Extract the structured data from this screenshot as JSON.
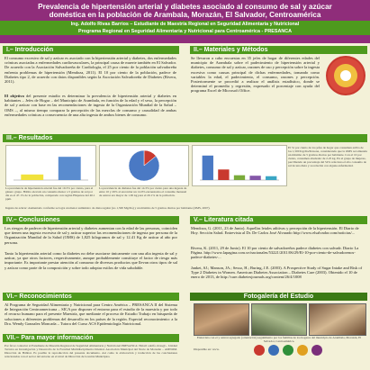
{
  "header": {
    "title_line1": "Prevalencia de hipertensión arterial y diabetes asociado al consumo de sal y azúcar",
    "title_line2": "doméstica en la población de Arambala, Morazán,  El Salvador, Centroamérica",
    "author_line": "Ing. Adolfo Rivas Barrios – Estudiante de Maestría Regional en Seguridad Alimentaria y Nutricional",
    "program_line": "Programa Regional en Seguridad Alimentaria y Nutricional para Centroamérica - PRESANCA"
  },
  "sections": {
    "intro": "I.– Introducción",
    "methods": "II.– Materiales y Métodos",
    "results": "III.– Resultados",
    "conclusions": "IV.– Conclusiones",
    "literature": "V.– Literatura citada",
    "acknowledgements": "VI.– Reconocimientos",
    "gallery": "Fotogalería del Estudio",
    "more_info": "VII.– Para mayor información"
  },
  "intro": {
    "p1": "El consumo excesivo de sal y azúcar es asociado con la hipertensión arterial y diabetes, dos enfermedades crónicas asociadas a enfermedades cardiovasculares, la principal causa de muerte también en El Salvador. De acuerdo con la Asociación Salvadoreña de Cardiología, el 25 por ciento de la población salvadoreña enfrenta problemas de hipertensión (Mendoza, 2011). El 10 por ciento de la población, padece de Diabetes tipo 2, de acuerdo con datos disponibles según la Asociación Salvadoreña de Diabetes (Rivera, 2011).",
    "p2_strong": "El objetivo",
    "p2": " del presente estudio es determinar la prevalencia de hipertensión arterial y diabetes en habitantes – Jefes de Hogar – del Municipio de Arambala, en función de la edad y el sexo, la percepción de sal y azúcar con base en las recomendaciones de ingesta de la Organización Mundial de la Salud – OMS –, al mismo tiempo comparar la percepción de las mezclas de consumo y causalidad de ambas enfermedades crónicas a consecuencia de una alta ingesta de ambos bienes de consumo."
  },
  "methods": {
    "p1": "Se llevaron a cabo encuestas en 35 jefes de hogar de diferentes edades del municipio de Arambala sobre el padecimiento de hipertensión arterial y diabetes, consumo de sal y azúcar, razones de uso y percepción sobre la ingesta excesiva como causas principal de dichas enfermedades, tomando como variables la edad, el padecimiento, el consumo, razones y percepción. Posteriormente se procedió a realizar el análisis estadístico, donde se determinó el promedio y regresión, expresado el porcentaje con ayuda del programa Excel de Microsoft Office."
  },
  "results": {
    "cap1": "La prevalencia de hipertensión arterial fue del 19.3% por ciento, para el género grupo. Hábito elevado un consumo menor a 5 gramos de sal por día es el 47.1% de la población, comparado con región Hispanos del 40.1 ppm.",
    "cap2": "La prevalencia de diabetes fue del 14.3% por ciento para una ingesta de entre 10 y 26% al encontrar un 14.9% encuestados el consumo mensual de azúcar era mayor de 1.65 kg para el 20.1% de la población.",
    "cap3": "El 51 por ciento de los jefes de hogar que consumen arriba de los 1,500 Kg/día/Persona, considerando que la OMS recomienda un máximo de 5 gramos diarios por habitante. Con el 10 por ciento, consumen alrededor de 2.25 kg. En el grupo de mujeres, percibiendo un porcentaje del 54% relaciona el alto consumo de sal de una dieta y su relación con alguna enfermedad.",
    "footnote": "Ingesta de azúcar: Aumentado conforme se logra un menor suministro de dieta regular (no 1,500 Mg/día) y un máximo de 5 gramos diarios por habitante (OMS, 2007)."
  },
  "conclusions": {
    "p1": "Los riesgos de padecer de hipertensión arterial y diabetes aumentan con la edad de las personas, coinciden que tienen una ingesta excesiva de sal y azúcar superior las recomendaciones de ingesta por persona de la Organización Mundial de la Salud (OMS) de 1,825 kilogramos de sal y 12.41 Kg de azúcar al año por persona.",
    "p2": "Tanto la hipertensión arterial como la diabetes no debe asociarse únicamente con una alta ingesta de sal y azúcar, ya que otros factores, respectivamente, aunque probablemente constituye el factor de riesgo más importante. Es importante prestar atención al consumo de diversos productos que llevan otros tipos de sal y azúcar como parte de la composición y sobre todo adoptar estilos de vida saludable."
  },
  "literature": {
    "r1": "Mendoza, G. (2011, 23 de Junio). Aquellas letales aditivas y percepción de la hipertensión. El Diario de Hoy. Sección Salud. Entrevista al Dr. De Carlos José Alvarado http://www.elsalvador.com/noticias/...",
    "r2": "Rivera, K. (2011, 29 de Junio). El 10 por ciento de salvadoreños padece diabetes con salvadr. Diario La Página. http://www.lapagina.com.sv/nacionales/53221/2011/06/29/El-10-por-ciento-de-salvadorenos-padece-diabetes-...",
    "r3": "Janket, SJ.; Manson, JA.; Sesso, H.; Buring, J.E. (2003). A Prospective Study of Sugar Intake and Risk of Type 2 Diabetes in Women. American Diabetes Association – Diabetes Care (2003). Obtenido el 10 de enero de 2013, de http://care.diabetesjournals.org/content/26/4/1008"
  },
  "acknowledgements": {
    "p1": "Al Programa de Seguridad Alimentaria y Nutricional para Centro América – PRESANCA II del Sistema de Integración Centroamericana – SICA por disponer el entorno para el estudio de la maestría y por todo el recurso humano para el presente Maestría, que mediante el proceso de Estudio Trabajo en búsqueda de soluciones a diferentes problemas del desarrollo en los países de la región. Especial reconocimiento: a la Dra. Wendy Gonzalez Moncada – Tutora del Curso ACS Epidemiología Nutricional."
  },
  "gallery": {
    "caption": "Entrevista con el y azúcar agregado (orientación) seguimiento por los familias de los hogares del municipio de Arambala, Morazán, El Salvador, Centroamérica.",
    "sponsor_label": "Disponible en: www."
  },
  "more_info": {
    "text": "Por favor contactar al Estudiante de Maestría Regional de Seguridad Alimentaria y Nutricional PRESANCA: Email: adolfo.rivas@... Unidad Técnica en Investigación y Desarrollo de la Facultad Multidisciplinaria Oriental. Asociación Municipal del Norte de Morazán – AMNOM. Dirección de Hábitat. Es posible la reproducción del presente documento. Así como la elaboración y traducción de las conclusiones relacionadas con el sector del entorno en el nivel de Dirección de la unión Municipios."
  },
  "chart1": {
    "type": "bar",
    "categories": [
      "Hipertensos",
      "No hipertensos"
    ],
    "values": [
      19.3,
      80.7
    ],
    "colors": [
      "#f1e23c",
      "#5a8ccf"
    ]
  },
  "chart2": {
    "type": "pie",
    "labels": [
      "Diabetes",
      "Sin diabetes"
    ],
    "values": [
      14.3,
      85.7
    ],
    "colors": [
      "#c9392f",
      "#4a79c4"
    ]
  },
  "chart3": {
    "type": "bar",
    "categories": [
      "A",
      "B",
      "C",
      "D",
      "E"
    ],
    "values": [
      51,
      22,
      10,
      9,
      8
    ],
    "colors": [
      "#4a79c4",
      "#c9392f",
      "#7aab3a",
      "#8457a8",
      "#3aa6c4"
    ]
  },
  "colors": {
    "header": "#8f2d7a",
    "section": "#4e9a1d",
    "background": "#f3f1d8"
  }
}
